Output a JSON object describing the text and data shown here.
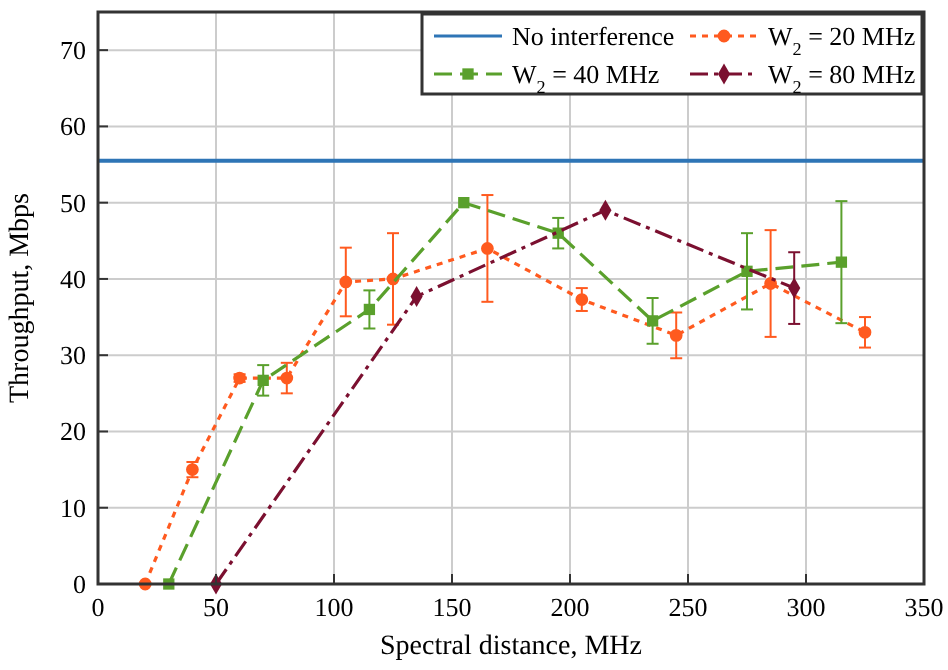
{
  "chart_data": {
    "type": "line",
    "xlabel": "Spectral distance, MHz",
    "ylabel": "Throughput, Mbps",
    "xlim": [
      0,
      350
    ],
    "xticks": [
      0,
      50,
      100,
      150,
      200,
      250,
      300,
      350
    ],
    "ylim": [
      0,
      75
    ],
    "yticks": [
      0,
      10,
      20,
      30,
      40,
      50,
      60,
      70
    ],
    "grid": true,
    "legend": "top right",
    "series": [
      {
        "name": "No interference",
        "color": "#2e75b6",
        "x": [
          0,
          350
        ],
        "values": [
          55.5,
          55.5
        ],
        "marker": "none",
        "line_style": "solid"
      },
      {
        "name": "W$_{2}$ = 20 MHz",
        "color": "#ff5a1f",
        "x": [
          20,
          40,
          60,
          80,
          105,
          125,
          165,
          205,
          245,
          285,
          325
        ],
        "values": [
          0,
          15,
          27,
          27,
          39.6,
          40,
          44,
          37.3,
          32.6,
          39.4,
          33
        ],
        "errors": [
          null,
          1,
          0.5,
          2,
          4.5,
          6,
          7,
          1.5,
          3,
          7,
          2
        ],
        "marker": "circle",
        "line_style": "dotted"
      },
      {
        "name": "W$_{2}$ = 40 MHz",
        "color": "#5aa02c",
        "x": [
          30,
          70,
          115,
          155,
          195,
          235,
          275,
          315
        ],
        "values": [
          0,
          26.7,
          36,
          50,
          46,
          34.5,
          41,
          42.2
        ],
        "errors": [
          null,
          2,
          2.5,
          null,
          2,
          3,
          5,
          8
        ],
        "marker": "square",
        "line_style": "dashed"
      },
      {
        "name": "W$_{2}$ = 80 MHz",
        "color": "#7b1030",
        "x": [
          50,
          135,
          215,
          295
        ],
        "values": [
          0,
          37.7,
          49,
          38.8
        ],
        "errors": [
          null,
          null,
          null,
          4.7
        ],
        "marker": "diamond",
        "line_style": "dashed"
      }
    ]
  }
}
